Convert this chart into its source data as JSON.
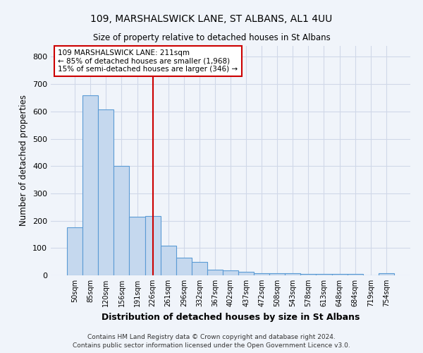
{
  "title1": "109, MARSHALSWICK LANE, ST ALBANS, AL1 4UU",
  "title2": "Size of property relative to detached houses in St Albans",
  "xlabel": "Distribution of detached houses by size in St Albans",
  "ylabel": "Number of detached properties",
  "footer1": "Contains HM Land Registry data © Crown copyright and database right 2024.",
  "footer2": "Contains public sector information licensed under the Open Government Licence v3.0.",
  "bar_labels": [
    "50sqm",
    "85sqm",
    "120sqm",
    "156sqm",
    "191sqm",
    "226sqm",
    "261sqm",
    "296sqm",
    "332sqm",
    "367sqm",
    "402sqm",
    "437sqm",
    "472sqm",
    "508sqm",
    "543sqm",
    "578sqm",
    "613sqm",
    "648sqm",
    "684sqm",
    "719sqm",
    "754sqm"
  ],
  "bar_values": [
    175,
    660,
    607,
    400,
    215,
    218,
    108,
    65,
    48,
    20,
    18,
    14,
    9,
    8,
    7,
    5,
    5,
    5,
    4,
    1,
    7
  ],
  "bar_color": "#c5d8ee",
  "bar_edge_color": "#5b9bd5",
  "background_color": "#f0f4fa",
  "grid_color": "#d0d8e8",
  "property_label": "109 MARSHALSWICK LANE: 211sqm",
  "annotation_line1": "← 85% of detached houses are smaller (1,968)",
  "annotation_line2": "15% of semi-detached houses are larger (346) →",
  "vline_x_index": 5.0,
  "vline_color": "#cc0000",
  "legend_box_color": "#ffffff",
  "legend_box_edge": "#cc0000",
  "ylim": [
    0,
    840
  ],
  "yticks": [
    0,
    100,
    200,
    300,
    400,
    500,
    600,
    700,
    800
  ]
}
